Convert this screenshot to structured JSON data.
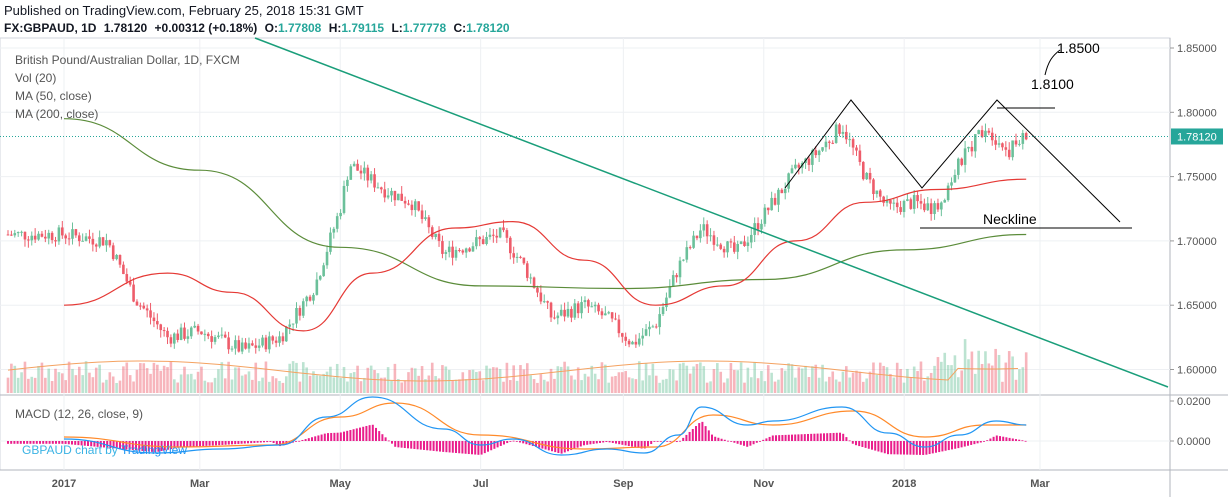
{
  "header": {
    "published": "Published on TradingView.com, February 25, 2018 15:31 GMT",
    "symbol": "FX:GBPAUD, 1D",
    "last": "1.78120",
    "change": "+0.00312 (+0.18%)",
    "o_label": "O:",
    "o": "1.77808",
    "h_label": "H:",
    "h": "1.79115",
    "l_label": "L:",
    "l": "1.77778",
    "c_label": "C:",
    "c": "1.78120"
  },
  "legend": {
    "title": "British Pound/Australian Dollar, 1D, FXCM",
    "vol": "Vol (20)",
    "ma50": "MA (50, close)",
    "ma200": "MA (200, close)"
  },
  "macd_label": "MACD (12, 26, close, 9)",
  "credit": {
    "a": "GBPAUD chart by ",
    "b": "TradingView"
  },
  "colors": {
    "up": "#6bc09a",
    "down": "#ee5c6a",
    "ma50": "#e53935",
    "ma200": "#5b8c3a",
    "trendline": "#1a9e7a",
    "macd": "#2196f3",
    "signal": "#ff8a2a",
    "hist": "#e91e8c",
    "last_badge": "#26a69a"
  },
  "annotations": {
    "neckline": "Neckline",
    "target1": "1.8100",
    "target2": "1.8500"
  },
  "chart_data": [
    {
      "type": "candlestick",
      "pane": "price",
      "y_ticks": [
        "1.85000",
        "1.80000",
        "1.75000",
        "1.70000",
        "1.65000",
        "1.60000"
      ],
      "y_ticks_values": [
        1.85,
        1.8,
        1.75,
        1.7,
        1.65,
        1.6
      ],
      "ylim": [
        1.585,
        1.855
      ],
      "last_price_label": "1.78120",
      "x_ticks": [
        "2017",
        "Mar",
        "May",
        "Jul",
        "Sep",
        "Nov",
        "2018",
        "Mar"
      ],
      "anchors": [
        [
          "2017-01-01",
          1.705
        ],
        [
          "2017-01-20",
          1.7
        ],
        [
          "2017-02-01",
          1.655
        ],
        [
          "2017-02-15",
          1.625
        ],
        [
          "2017-03-01",
          1.63
        ],
        [
          "2017-03-20",
          1.615
        ],
        [
          "2017-04-05",
          1.625
        ],
        [
          "2017-04-20",
          1.665
        ],
        [
          "2017-05-01",
          1.725
        ],
        [
          "2017-05-05",
          1.76
        ],
        [
          "2017-05-20",
          1.74
        ],
        [
          "2017-06-01",
          1.73
        ],
        [
          "2017-06-15",
          1.69
        ],
        [
          "2017-07-01",
          1.7
        ],
        [
          "2017-07-10",
          1.705
        ],
        [
          "2017-07-20",
          1.68
        ],
        [
          "2017-08-01",
          1.64
        ],
        [
          "2017-08-15",
          1.65
        ],
        [
          "2017-08-25",
          1.64
        ],
        [
          "2017-09-05",
          1.62
        ],
        [
          "2017-09-15",
          1.635
        ],
        [
          "2017-09-25",
          1.68
        ],
        [
          "2017-10-05",
          1.71
        ],
        [
          "2017-10-20",
          1.69
        ],
        [
          "2017-11-01",
          1.72
        ],
        [
          "2017-11-15",
          1.755
        ],
        [
          "2017-11-25",
          1.77
        ],
        [
          "2017-12-05",
          1.79
        ],
        [
          "2017-12-15",
          1.75
        ],
        [
          "2017-12-25",
          1.725
        ],
        [
          "2018-01-05",
          1.73
        ],
        [
          "2018-01-15",
          1.725
        ],
        [
          "2018-01-25",
          1.76
        ],
        [
          "2018-02-05",
          1.79
        ],
        [
          "2018-02-15",
          1.77
        ],
        [
          "2018-02-23",
          1.781
        ]
      ],
      "ma50": [
        [
          "2017-01-01",
          1.65
        ],
        [
          "2017-02-15",
          1.675
        ],
        [
          "2017-03-15",
          1.66
        ],
        [
          "2017-04-15",
          1.63
        ],
        [
          "2017-05-15",
          1.675
        ],
        [
          "2017-06-20",
          1.71
        ],
        [
          "2017-07-15",
          1.715
        ],
        [
          "2017-08-15",
          1.685
        ],
        [
          "2017-09-15",
          1.65
        ],
        [
          "2017-10-15",
          1.665
        ],
        [
          "2017-11-15",
          1.7
        ],
        [
          "2017-12-15",
          1.73
        ],
        [
          "2018-01-15",
          1.74
        ],
        [
          "2018-02-23",
          1.748
        ]
      ],
      "ma200": [
        [
          "2017-01-01",
          1.795
        ],
        [
          "2017-03-01",
          1.755
        ],
        [
          "2017-05-01",
          1.695
        ],
        [
          "2017-07-01",
          1.665
        ],
        [
          "2017-09-01",
          1.663
        ],
        [
          "2017-11-01",
          1.67
        ],
        [
          "2018-01-01",
          1.693
        ],
        [
          "2018-02-23",
          1.705
        ]
      ]
    },
    {
      "type": "macd",
      "pane": "macd",
      "y_ticks": [
        "0.0200",
        "0.0000"
      ],
      "y_ticks_values": [
        0.02,
        0.0
      ],
      "ylim": [
        -0.007,
        0.022
      ],
      "macd": [
        [
          "2017-01-01",
          0.001
        ],
        [
          "2017-02-10",
          -0.006
        ],
        [
          "2017-03-10",
          -0.004
        ],
        [
          "2017-04-05",
          -0.002
        ],
        [
          "2017-04-25",
          0.012
        ],
        [
          "2017-05-15",
          0.022
        ],
        [
          "2017-06-15",
          0.006
        ],
        [
          "2017-07-01",
          -0.002
        ],
        [
          "2017-07-15",
          0.001
        ],
        [
          "2017-08-05",
          -0.007
        ],
        [
          "2017-08-25",
          -0.004
        ],
        [
          "2017-09-10",
          -0.006
        ],
        [
          "2017-09-25",
          0.003
        ],
        [
          "2017-10-05",
          0.017
        ],
        [
          "2017-10-25",
          0.008
        ],
        [
          "2017-11-05",
          0.01
        ],
        [
          "2017-12-05",
          0.017
        ],
        [
          "2017-12-25",
          0.004
        ],
        [
          "2018-01-10",
          -0.003
        ],
        [
          "2018-01-25",
          0.003
        ],
        [
          "2018-02-10",
          0.01
        ],
        [
          "2018-02-23",
          0.008
        ]
      ],
      "signal": [
        [
          "2017-01-01",
          0.002
        ],
        [
          "2017-02-20",
          -0.003
        ],
        [
          "2017-04-01",
          -0.002
        ],
        [
          "2017-05-01",
          0.012
        ],
        [
          "2017-05-25",
          0.019
        ],
        [
          "2017-07-01",
          0.003
        ],
        [
          "2017-08-15",
          -0.004
        ],
        [
          "2017-09-15",
          -0.003
        ],
        [
          "2017-10-10",
          0.013
        ],
        [
          "2017-11-05",
          0.008
        ],
        [
          "2017-12-10",
          0.015
        ],
        [
          "2018-01-10",
          0.002
        ],
        [
          "2018-02-05",
          0.008
        ],
        [
          "2018-02-23",
          0.008
        ]
      ]
    }
  ]
}
